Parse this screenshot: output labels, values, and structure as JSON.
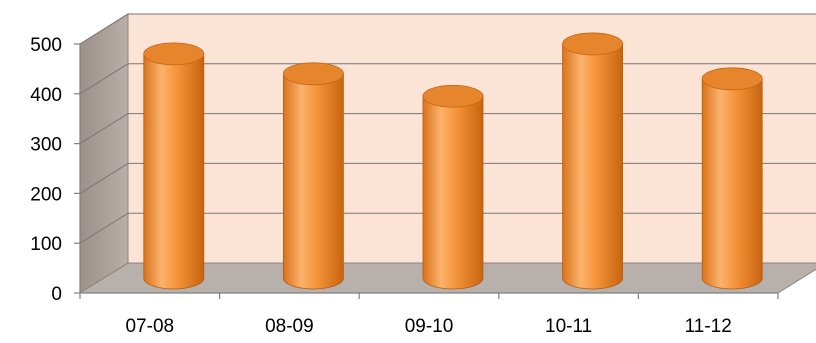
{
  "colors": {
    "back_wall": "#fbe4d5",
    "side_wall": "#aa9f98",
    "floor": "#b8b0ab",
    "grid": "#777777",
    "bar_light": "#fbb36c",
    "bar_mid": "#f5943a",
    "bar_dark": "#d26a14",
    "bar_top": "#e7852d"
  },
  "chart_data": {
    "type": "bar",
    "style": "3d-cylinder",
    "categories": [
      "07-08",
      "08-09",
      "09-10",
      "10-11",
      "11-12"
    ],
    "values": [
      450,
      410,
      365,
      470,
      400
    ],
    "ylim": [
      0,
      500
    ],
    "yticks": [
      0,
      100,
      200,
      300,
      400,
      500
    ],
    "title": "",
    "xlabel": "",
    "ylabel": "",
    "grid": true,
    "legend": "none"
  }
}
